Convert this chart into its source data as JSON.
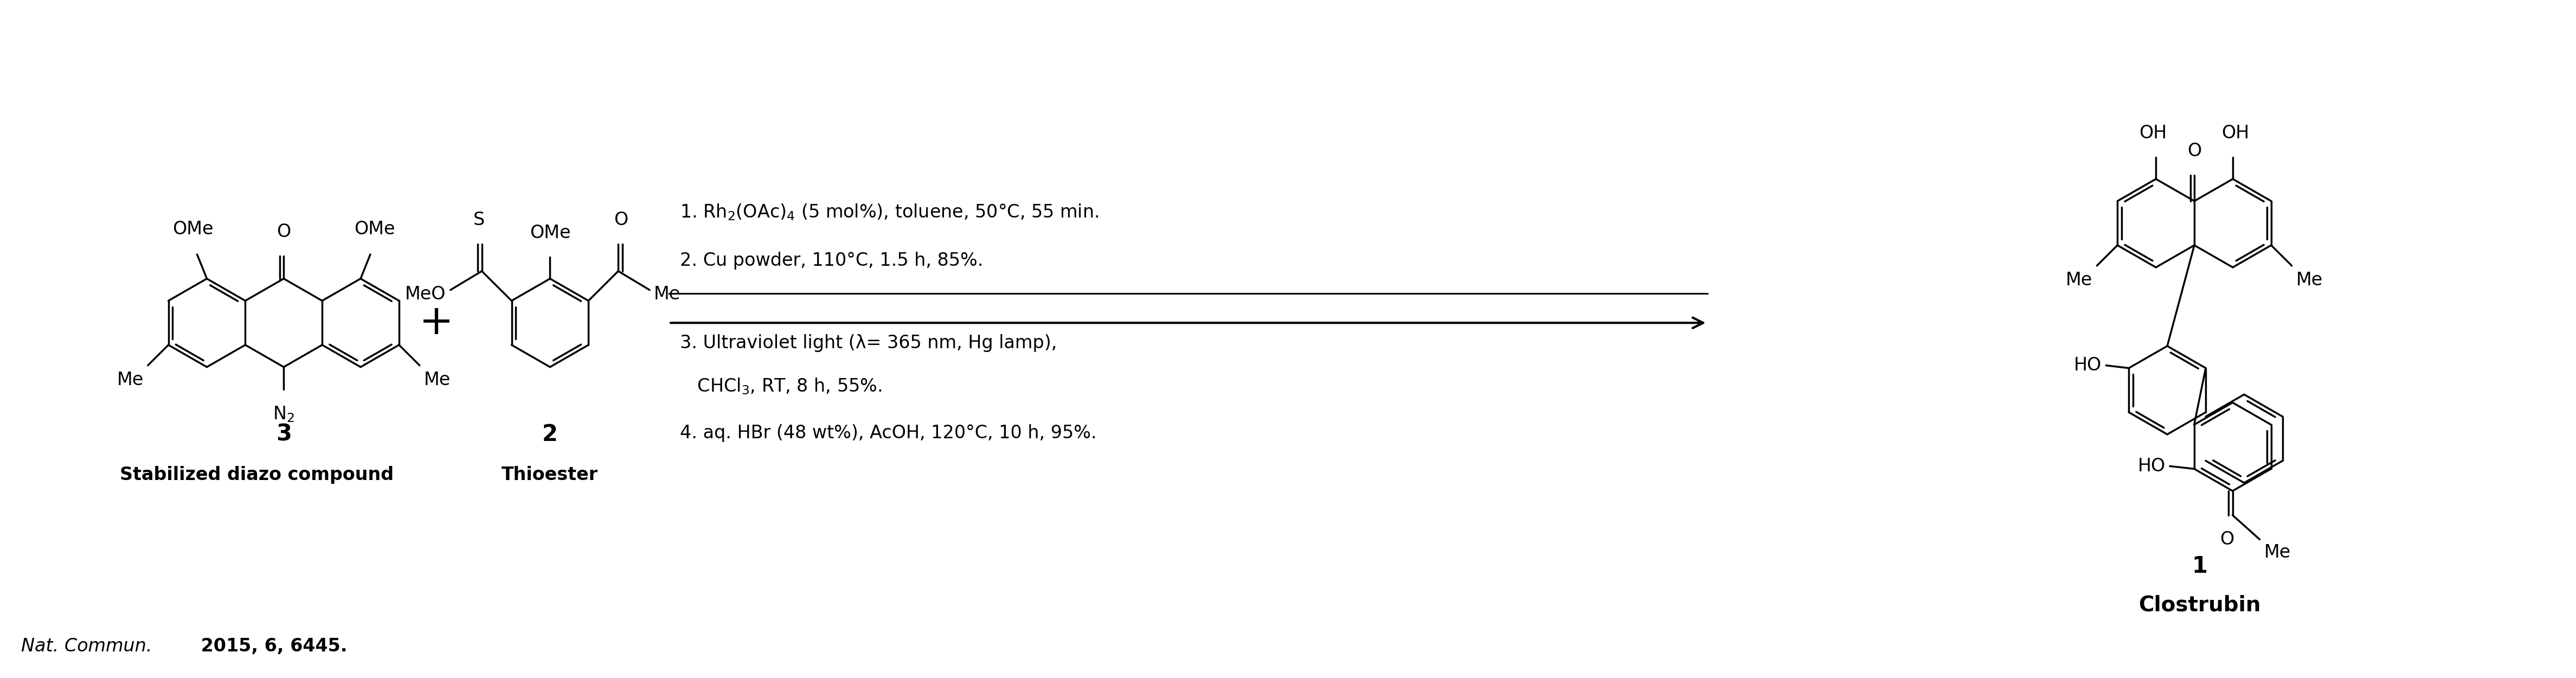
{
  "background_color": "#ffffff",
  "fig_width": 47.51,
  "fig_height": 12.5,
  "text_color": "#000000",
  "conditions_line1": "1. Rh$_2$(OAc)$_4$ (5 mol%), toluene, 50°C, 55 min.",
  "conditions_line2": "2. Cu powder, 110°C, 1.5 h, 85%.",
  "conditions_line3": "3. Ultraviolet light (λ= 365 nm, Hg lamp),",
  "conditions_line4": "   CHCl$_3$, RT, 8 h, 55%.",
  "conditions_line5": "4. aq. HBr (48 wt%), AcOH, 120°C, 10 h, 95%.",
  "label_3": "3",
  "label_3_name": "Stabilized diazo compound",
  "label_2": "2",
  "label_2_name": "Thioester",
  "label_1": "1",
  "label_1_name": "Clostrubin",
  "ref_italic": "Nat. Commun.",
  "ref_bold": " 2015, 6, 6445.",
  "font_size_labels": 30,
  "font_size_conditions": 24,
  "font_size_ref": 24,
  "font_size_atoms": 24,
  "bond_lw": 2.5
}
